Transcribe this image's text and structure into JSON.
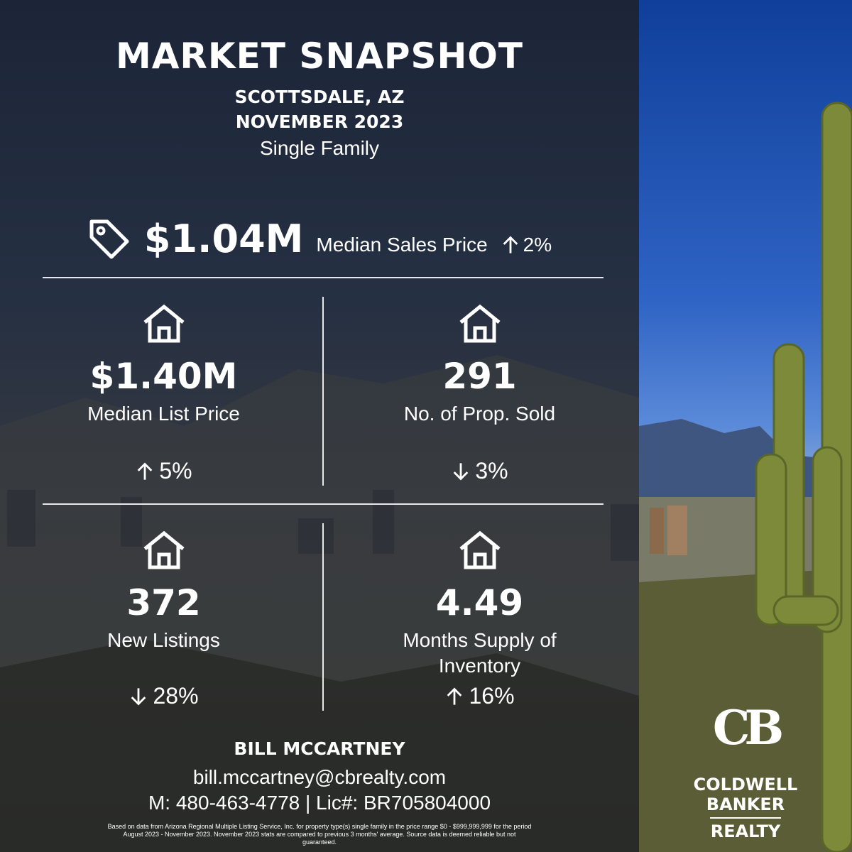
{
  "header": {
    "title": "MARKET SNAPSHOT",
    "location": "SCOTTSDALE, AZ",
    "period": "NOVEMBER 2023",
    "property_type": "Single Family"
  },
  "headline": {
    "value": "$1.04M",
    "label": "Median Sales Price",
    "change": "2%",
    "trend": "up"
  },
  "metrics": [
    {
      "value": "$1.40M",
      "label": "Median List Price",
      "change": "5%",
      "trend": "up"
    },
    {
      "value": "291",
      "label": "No. of Prop. Sold",
      "change": "3%",
      "trend": "down"
    },
    {
      "value": "372",
      "label": "New Listings",
      "change": "28%",
      "trend": "down"
    },
    {
      "value": "4.49",
      "label": "Months Supply of Inventory",
      "change": "16%",
      "trend": "up"
    }
  ],
  "agent": {
    "name": "BILL MCCARTNEY",
    "email": "bill.mccartney@cbrealty.com",
    "contact": "M: 480-463-4778 | Lic#: BR705804000"
  },
  "disclaimer": "Based on data from Arizona Regional Multiple Listing Service, Inc. for property type(s) single family in the price range $0 - $999,999,999 for the period August 2023 - November 2023. November 2023 stats are compared to previous 3 months' average. Source data is deemed reliable but not guaranteed.",
  "logo": {
    "monogram": "CB",
    "line1": "COLDWELL",
    "line2": "BANKER",
    "line3": "REALTY"
  }
}
